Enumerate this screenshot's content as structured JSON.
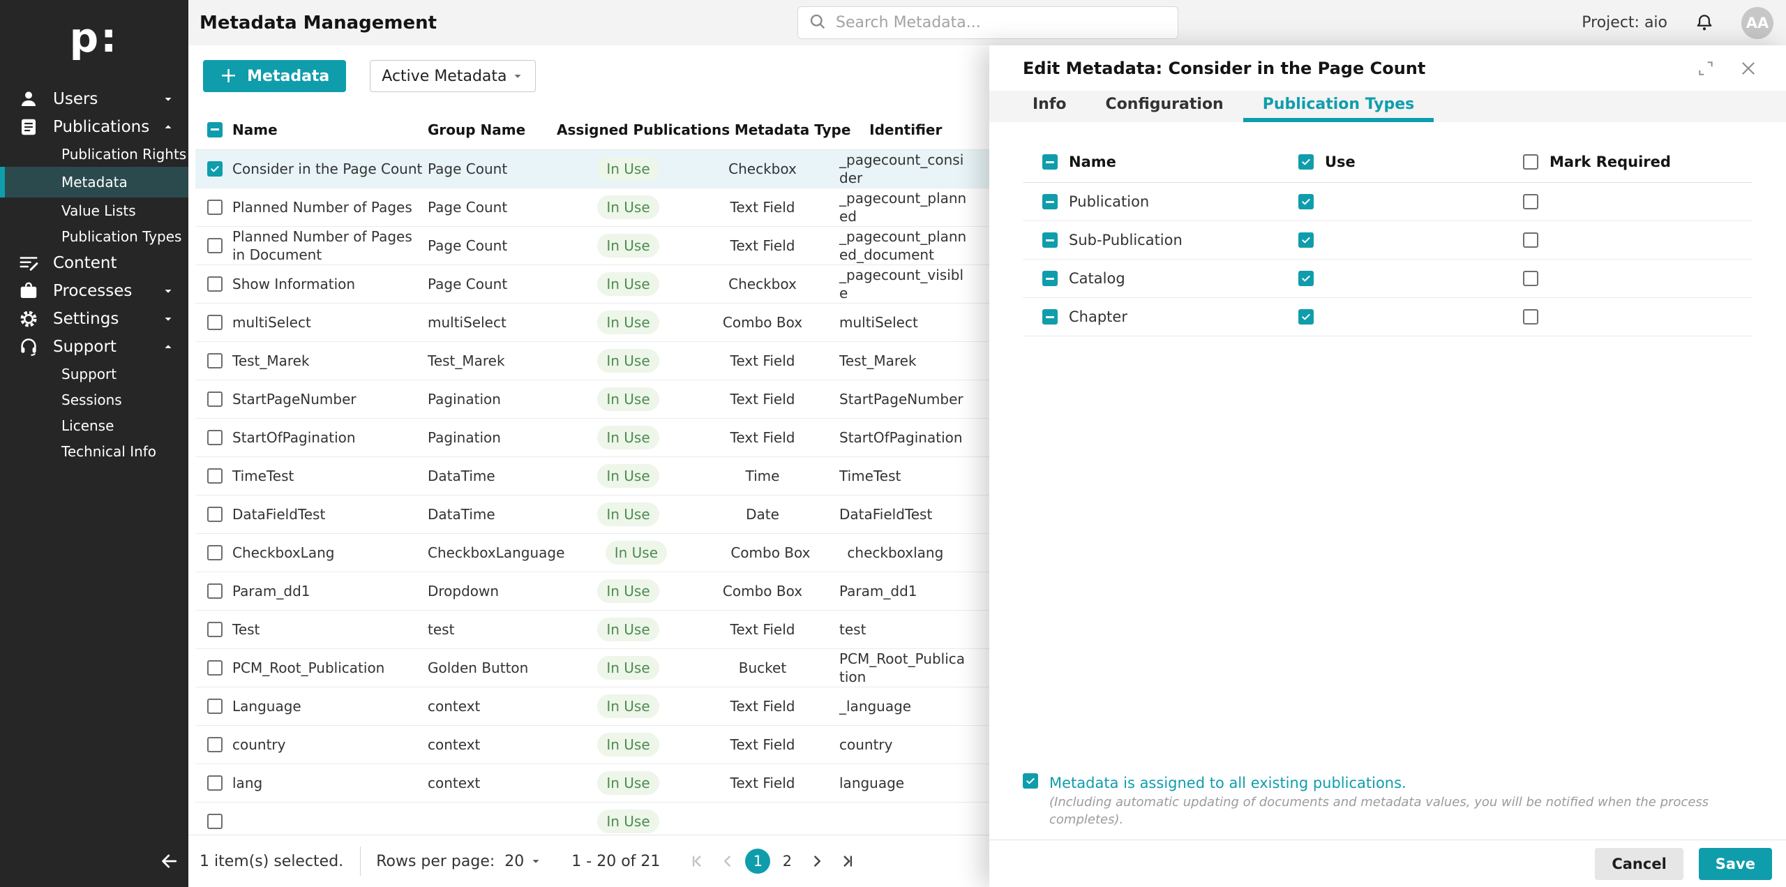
{
  "colors": {
    "accent": "#0F9DAC",
    "sidebar_bg": "#262626",
    "sidebar_active_bg": "#2B4A4E",
    "selected_row_bg": "#E8F4F7",
    "status_pill_bg": "#EDF6E9",
    "status_pill_text": "#4D8B52",
    "topbar_bg": "#F3F3F3",
    "tabbar_bg": "#F4F4F4"
  },
  "sidebar": {
    "logo_text": "p:",
    "items": [
      {
        "label": "Users",
        "icon": "user-icon",
        "caret": "down"
      },
      {
        "label": "Publications",
        "icon": "publications-icon",
        "caret": "up",
        "children": [
          {
            "label": "Publication Rights"
          },
          {
            "label": "Metadata",
            "active": true
          },
          {
            "label": "Value Lists"
          },
          {
            "label": "Publication Types"
          }
        ]
      },
      {
        "label": "Content",
        "icon": "content-icon"
      },
      {
        "label": "Processes",
        "icon": "processes-icon",
        "caret": "down"
      },
      {
        "label": "Settings",
        "icon": "settings-icon",
        "caret": "down"
      },
      {
        "label": "Support",
        "icon": "support-icon",
        "caret": "up",
        "children": [
          {
            "label": "Support"
          },
          {
            "label": "Sessions"
          },
          {
            "label": "License"
          },
          {
            "label": "Technical Info"
          }
        ]
      }
    ]
  },
  "topbar": {
    "title": "Metadata Management",
    "search_placeholder": "Search Metadata...",
    "project_label": "Project: aio",
    "avatar_initials": "AA"
  },
  "toolbar": {
    "add_button_label": "Metadata",
    "filter_value": "Active Metadata"
  },
  "table": {
    "columns": [
      "Name",
      "Group Name",
      "Assigned Publications",
      "Metadata Type",
      "Identifier"
    ],
    "rows": [
      {
        "name": "Consider in the Page Count",
        "group": "Page Count",
        "status": "In Use",
        "type": "Checkbox",
        "identifier": "_pagecount_consider",
        "selected": true
      },
      {
        "name": "Planned Number of Pages",
        "group": "Page Count",
        "status": "In Use",
        "type": "Text Field",
        "identifier": "_pagecount_planned"
      },
      {
        "name": "Planned Number of Pages in Document",
        "group": "Page Count",
        "status": "In Use",
        "type": "Text Field",
        "identifier": "_pagecount_planned_document"
      },
      {
        "name": "Show Information",
        "group": "Page Count",
        "status": "In Use",
        "type": "Checkbox",
        "identifier": "_pagecount_visible"
      },
      {
        "name": "multiSelect",
        "group": "multiSelect",
        "status": "In Use",
        "type": "Combo Box",
        "identifier": "multiSelect"
      },
      {
        "name": "Test_Marek",
        "group": "Test_Marek",
        "status": "In Use",
        "type": "Text Field",
        "identifier": "Test_Marek"
      },
      {
        "name": "StartPageNumber",
        "group": "Pagination",
        "status": "In Use",
        "type": "Text Field",
        "identifier": "StartPageNumber"
      },
      {
        "name": "StartOfPagination",
        "group": "Pagination",
        "status": "In Use",
        "type": "Text Field",
        "identifier": "StartOfPagination"
      },
      {
        "name": "TimeTest",
        "group": "DataTime",
        "status": "In Use",
        "type": "Time",
        "identifier": "TimeTest"
      },
      {
        "name": "DataFieldTest",
        "group": "DataTime",
        "status": "In Use",
        "type": "Date",
        "identifier": "DataFieldTest"
      },
      {
        "name": "CheckboxLang",
        "group": "CheckboxLanguage",
        "status": "In Use",
        "type": "Combo Box",
        "identifier": "checkboxlang"
      },
      {
        "name": "Param_dd1",
        "group": "Dropdown",
        "status": "In Use",
        "type": "Combo Box",
        "identifier": "Param_dd1"
      },
      {
        "name": "Test",
        "group": "test",
        "status": "In Use",
        "type": "Text Field",
        "identifier": "test"
      },
      {
        "name": "PCM_Root_Publication",
        "group": "Golden Button",
        "status": "In Use",
        "type": "Bucket",
        "identifier": "PCM_Root_Publication"
      },
      {
        "name": "Language",
        "group": "context",
        "status": "In Use",
        "type": "Text Field",
        "identifier": "_language"
      },
      {
        "name": "country",
        "group": "context",
        "status": "In Use",
        "type": "Text Field",
        "identifier": "country"
      },
      {
        "name": "lang",
        "group": "context",
        "status": "In Use",
        "type": "Text Field",
        "identifier": "language"
      },
      {
        "name": "",
        "group": "",
        "status": "In Use",
        "type": "",
        "identifier": "",
        "partial": true
      }
    ]
  },
  "footer": {
    "selected_text": "1 item(s) selected.",
    "rows_per_page_label": "Rows per page:",
    "rows_per_page_value": "20",
    "range_text": "1 - 20 of 21",
    "pages": [
      "1",
      "2"
    ],
    "active_page": "1"
  },
  "drawer": {
    "title": "Edit Metadata: Consider in the Page Count",
    "tabs": [
      "Info",
      "Configuration",
      "Publication Types"
    ],
    "active_tab": "Publication Types",
    "pub_types": {
      "columns": [
        "Name",
        "Use",
        "Mark Required"
      ],
      "rows": [
        "Publication",
        "Sub-Publication",
        "Catalog",
        "Chapter"
      ]
    },
    "assign_label": "Metadata is assigned to all existing publications.",
    "assign_note": "(Including automatic updating of documents and metadata values, you will be notified when the process completes).",
    "cancel_label": "Cancel",
    "save_label": "Save"
  }
}
